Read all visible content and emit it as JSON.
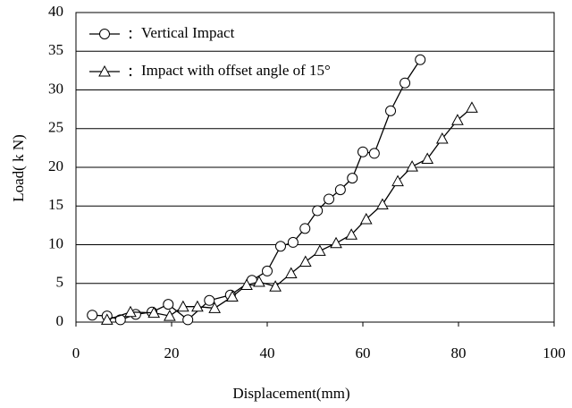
{
  "chart_data": {
    "type": "line",
    "x_label": "Displacement(mm)",
    "y_label": "Load( k N)",
    "xlim": [
      0,
      100
    ],
    "xticks": [
      0,
      20,
      40,
      60,
      80,
      100
    ],
    "ylim": [
      0,
      40
    ],
    "yticks": [
      0,
      5,
      10,
      15,
      20,
      25,
      30,
      35,
      40
    ],
    "grid": true,
    "legend": "upper left",
    "series": [
      {
        "name": "Vertical Impact",
        "color": "#000000",
        "marker": "circle",
        "x": [
          3.4,
          6.5,
          9.3,
          12.5,
          15.9,
          19.3,
          23.4,
          27.9,
          32.3,
          36.8,
          40,
          42.8,
          45.4,
          47.9,
          50.5,
          52.9,
          55.3,
          57.8,
          60,
          62.4,
          65.8,
          68.8,
          72
        ],
        "values": [
          0.9,
          0.8,
          0.3,
          1.0,
          1.3,
          2.3,
          0.3,
          2.8,
          3.5,
          5.4,
          6.6,
          9.8,
          10.3,
          12.1,
          14.4,
          15.9,
          17.1,
          18.6,
          22.0,
          21.8,
          27.3,
          30.9,
          33.9
        ]
      },
      {
        "name": "Impact with offset angle of 15°",
        "color": "#000000",
        "marker": "triangle",
        "x": [
          6.5,
          11.4,
          16.3,
          19.6,
          22.4,
          25.4,
          29,
          32.7,
          35.7,
          38.3,
          41.7,
          45,
          48,
          51,
          54.4,
          57.6,
          60.7,
          64.1,
          67.3,
          70.3,
          73.5,
          76.6,
          79.8,
          82.8
        ],
        "values": [
          0.3,
          1.3,
          1.2,
          0.8,
          2.0,
          2.0,
          1.8,
          3.3,
          4.8,
          5.2,
          4.6,
          6.3,
          7.8,
          9.2,
          10.2,
          11.3,
          13.3,
          15.2,
          18.2,
          20.1,
          21.1,
          23.7,
          26.1,
          27.7
        ]
      }
    ]
  }
}
